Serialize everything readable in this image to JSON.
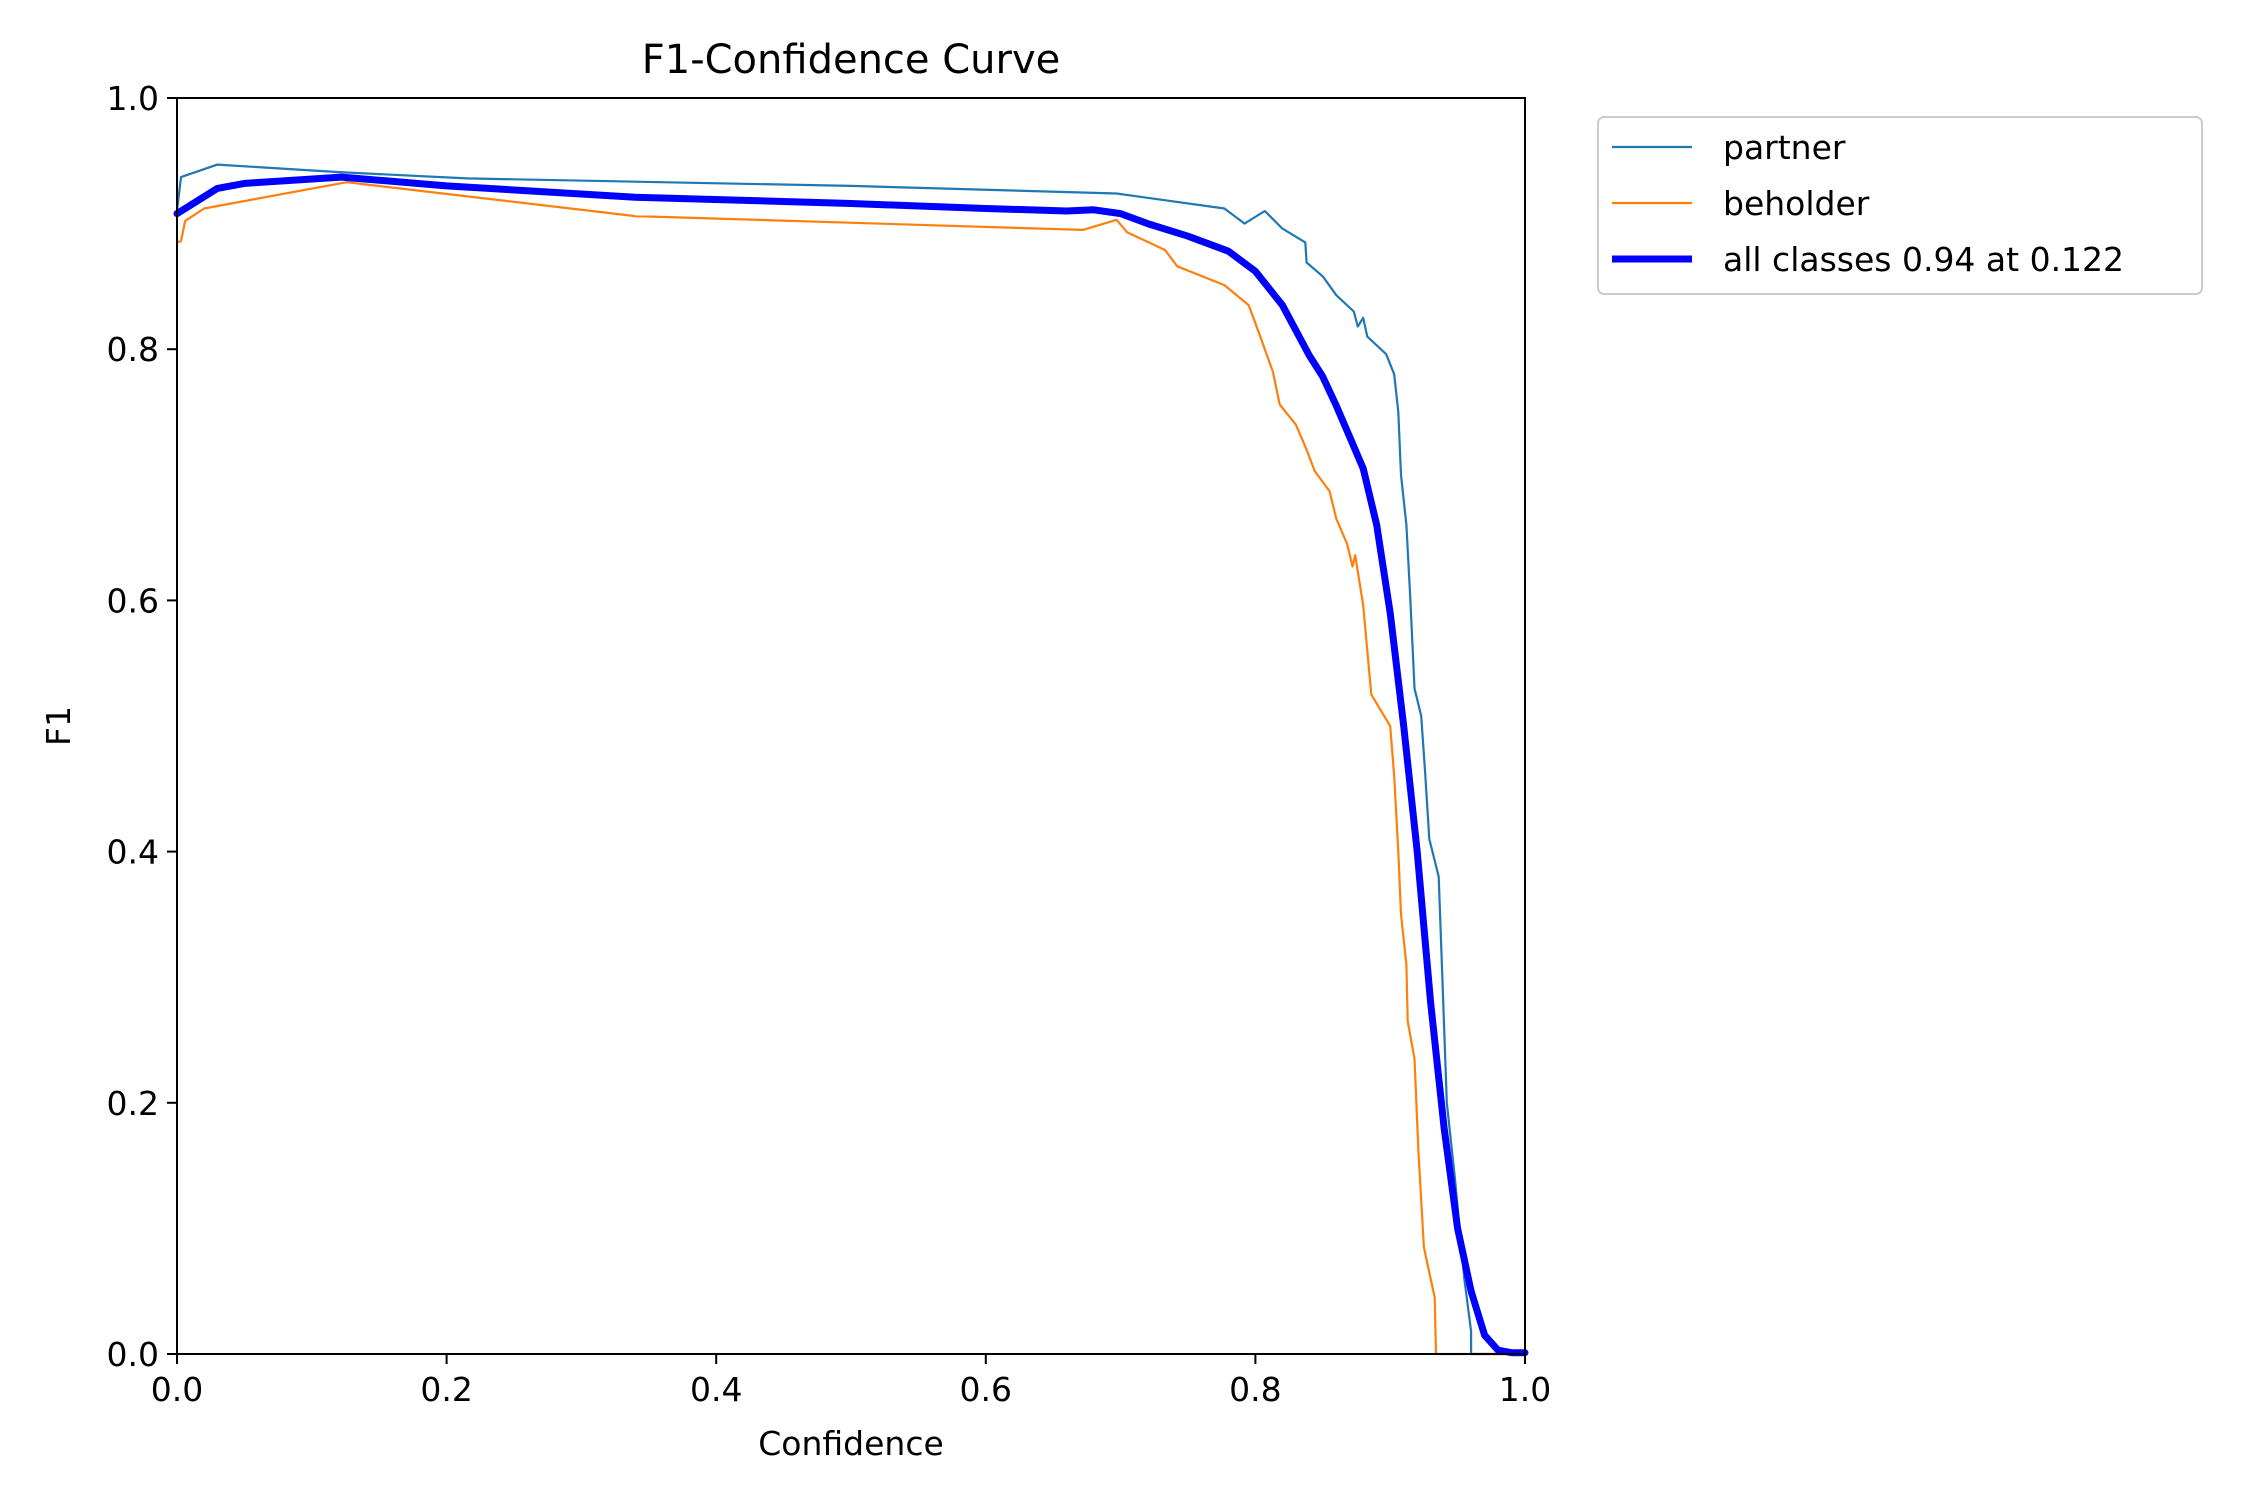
{
  "chart_data": {
    "type": "line",
    "title": "F1-Confidence Curve",
    "xlabel": "Confidence",
    "ylabel": "F1",
    "xlim": [
      0,
      1
    ],
    "ylim": [
      0,
      1
    ],
    "xticks": [
      "0.0",
      "0.2",
      "0.4",
      "0.6",
      "0.8",
      "1.0"
    ],
    "yticks": [
      "0.0",
      "0.2",
      "0.4",
      "0.6",
      "0.8",
      "1.0"
    ],
    "grid": false,
    "legend_position": "outside-upper-right",
    "series": [
      {
        "name": "partner",
        "color": "#1f77b4",
        "width": "thin",
        "points": [
          [
            0.0,
            0.91
          ],
          [
            0.003,
            0.937
          ],
          [
            0.03,
            0.947
          ],
          [
            0.12,
            0.941
          ],
          [
            0.215,
            0.936
          ],
          [
            0.5,
            0.93
          ],
          [
            0.697,
            0.924
          ],
          [
            0.777,
            0.912
          ],
          [
            0.792,
            0.9
          ],
          [
            0.807,
            0.91
          ],
          [
            0.82,
            0.896
          ],
          [
            0.837,
            0.885
          ],
          [
            0.838,
            0.869
          ],
          [
            0.85,
            0.858
          ],
          [
            0.86,
            0.843
          ],
          [
            0.873,
            0.83
          ],
          [
            0.876,
            0.818
          ],
          [
            0.88,
            0.825
          ],
          [
            0.883,
            0.81
          ],
          [
            0.897,
            0.796
          ],
          [
            0.903,
            0.78
          ],
          [
            0.906,
            0.75
          ],
          [
            0.908,
            0.7
          ],
          [
            0.912,
            0.66
          ],
          [
            0.915,
            0.6
          ],
          [
            0.918,
            0.53
          ],
          [
            0.923,
            0.508
          ],
          [
            0.926,
            0.462
          ],
          [
            0.929,
            0.41
          ],
          [
            0.936,
            0.38
          ],
          [
            0.939,
            0.29
          ],
          [
            0.942,
            0.2
          ],
          [
            0.948,
            0.14
          ],
          [
            0.955,
            0.06
          ],
          [
            0.96,
            0.018
          ],
          [
            0.96,
            0.0
          ],
          [
            1.0,
            0.0
          ]
        ]
      },
      {
        "name": "beholder",
        "color": "#ff7f0e",
        "width": "thin",
        "points": [
          [
            0.0,
            0.885
          ],
          [
            0.003,
            0.886
          ],
          [
            0.006,
            0.902
          ],
          [
            0.02,
            0.912
          ],
          [
            0.126,
            0.933
          ],
          [
            0.34,
            0.906
          ],
          [
            0.672,
            0.895
          ],
          [
            0.697,
            0.903
          ],
          [
            0.705,
            0.893
          ],
          [
            0.733,
            0.879
          ],
          [
            0.742,
            0.866
          ],
          [
            0.777,
            0.851
          ],
          [
            0.795,
            0.835
          ],
          [
            0.803,
            0.812
          ],
          [
            0.807,
            0.8
          ],
          [
            0.813,
            0.782
          ],
          [
            0.818,
            0.756
          ],
          [
            0.83,
            0.74
          ],
          [
            0.838,
            0.72
          ],
          [
            0.844,
            0.703
          ],
          [
            0.855,
            0.687
          ],
          [
            0.86,
            0.665
          ],
          [
            0.868,
            0.645
          ],
          [
            0.872,
            0.627
          ],
          [
            0.874,
            0.636
          ],
          [
            0.88,
            0.596
          ],
          [
            0.886,
            0.525
          ],
          [
            0.9,
            0.5
          ],
          [
            0.903,
            0.46
          ],
          [
            0.906,
            0.4
          ],
          [
            0.908,
            0.35
          ],
          [
            0.912,
            0.31
          ],
          [
            0.913,
            0.265
          ],
          [
            0.918,
            0.235
          ],
          [
            0.921,
            0.16
          ],
          [
            0.925,
            0.085
          ],
          [
            0.93,
            0.06
          ],
          [
            0.933,
            0.045
          ],
          [
            0.934,
            0.0
          ],
          [
            1.0,
            0.0
          ]
        ]
      },
      {
        "name": "all classes 0.94 at 0.122",
        "color": "#0000ff",
        "width": "thick",
        "points": [
          [
            0.0,
            0.908
          ],
          [
            0.03,
            0.928
          ],
          [
            0.05,
            0.932
          ],
          [
            0.122,
            0.937
          ],
          [
            0.2,
            0.93
          ],
          [
            0.34,
            0.921
          ],
          [
            0.5,
            0.916
          ],
          [
            0.6,
            0.912
          ],
          [
            0.66,
            0.91
          ],
          [
            0.68,
            0.911
          ],
          [
            0.7,
            0.908
          ],
          [
            0.72,
            0.9
          ],
          [
            0.75,
            0.89
          ],
          [
            0.78,
            0.878
          ],
          [
            0.8,
            0.862
          ],
          [
            0.82,
            0.835
          ],
          [
            0.84,
            0.795
          ],
          [
            0.85,
            0.778
          ],
          [
            0.86,
            0.755
          ],
          [
            0.87,
            0.73
          ],
          [
            0.88,
            0.705
          ],
          [
            0.89,
            0.66
          ],
          [
            0.9,
            0.59
          ],
          [
            0.91,
            0.5
          ],
          [
            0.92,
            0.4
          ],
          [
            0.93,
            0.28
          ],
          [
            0.94,
            0.18
          ],
          [
            0.95,
            0.1
          ],
          [
            0.96,
            0.05
          ],
          [
            0.97,
            0.015
          ],
          [
            0.98,
            0.003
          ],
          [
            0.99,
            0.001
          ],
          [
            1.0,
            0.001
          ]
        ]
      }
    ]
  }
}
